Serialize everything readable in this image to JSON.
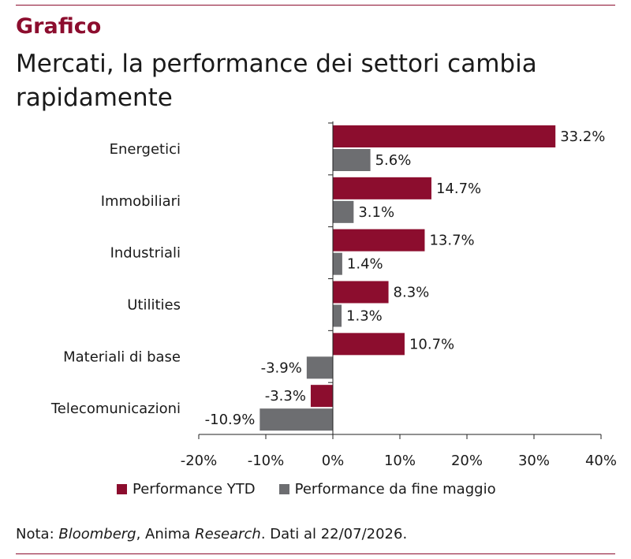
{
  "header": {
    "kicker": "Grafico",
    "title": "Mercati, la performance dei settori cambia rapidamente"
  },
  "colors": {
    "ytd": "#8c0d2e",
    "may": "#6d6e71",
    "accent": "#8c0d2e",
    "axis": "#222222"
  },
  "chart_data": {
    "type": "bar",
    "orientation": "horizontal",
    "categories": [
      "Energetici",
      "Immobiliari",
      "Industriali",
      "Utilities",
      "Materiali di base",
      "Telecomunicazioni"
    ],
    "series": [
      {
        "name": "Performance YTD",
        "values": [
          33.2,
          14.7,
          13.7,
          8.3,
          10.7,
          -3.3
        ],
        "labels": [
          "33.2%",
          "14.7%",
          "13.7%",
          "8.3%",
          "10.7%",
          "-3.3%"
        ]
      },
      {
        "name": "Performance da fine maggio",
        "values": [
          5.6,
          3.1,
          1.4,
          1.3,
          -3.9,
          -10.9
        ],
        "labels": [
          "5.6%",
          "3.1%",
          "1.4%",
          "1.3%",
          "-3.9%",
          "-10.9%"
        ]
      }
    ],
    "xlim": [
      -20,
      40
    ],
    "xticks": [
      -20,
      -10,
      0,
      10,
      20,
      30,
      40
    ],
    "xtick_labels": [
      "-20%",
      "-10%",
      "0%",
      "10%",
      "20%",
      "30%",
      "40%"
    ],
    "grid": false,
    "legend_position": "bottom"
  },
  "note": {
    "prefix": "Nota: ",
    "source1": "Bloomberg",
    "sep": ", Anima ",
    "source2": "Research",
    "suffix": ". Dati al 22/07/2026."
  }
}
